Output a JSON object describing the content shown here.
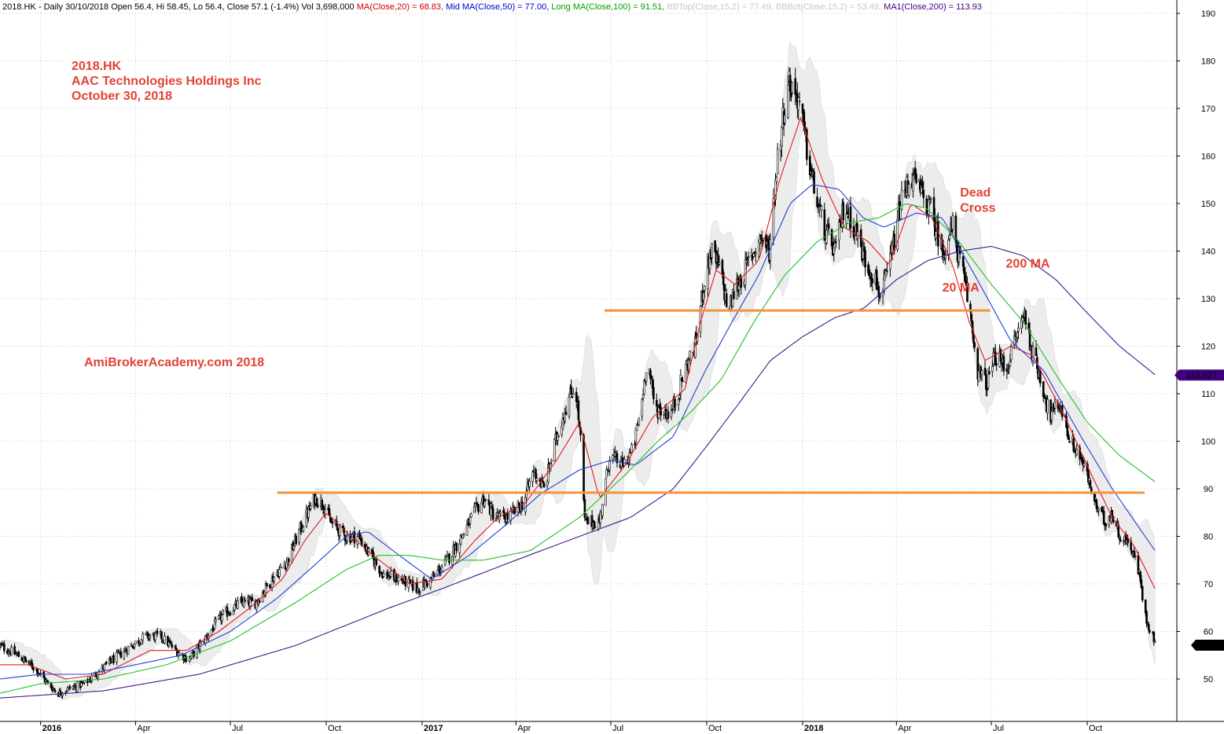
{
  "chart_data": {
    "type": "candlestick",
    "ticker": "2018.HK",
    "header": [
      {
        "text": "2018.HK - Daily 30/10/2018 Open 56.4, Hi 58.45, Lo 56.4, Close 57.1 (-1.4%) Vol 3,698,000 ",
        "color": "#000000"
      },
      {
        "text": "MA(Close,20) = 68.83, ",
        "color": "#d00000"
      },
      {
        "text": "Mid MA(Close,50) = 77.00, ",
        "color": "#0000d0"
      },
      {
        "text": "Long MA(Close,100) = 91.51, ",
        "color": "#00a000"
      },
      {
        "text": "BBTop(Close,15,2) = 77.49, ",
        "color": "#c8c8c8"
      },
      {
        "text": "BBBot(Close,15,2) = 53.49, ",
        "color": "#c8c8c8"
      },
      {
        "text": "MA1(Close,200) = 113.93",
        "color": "#400080"
      }
    ],
    "title_lines": [
      "2018.HK",
      "AAC Technologies Holdings Inc",
      "October 30, 2018"
    ],
    "watermark": "AmiBrokerAcademy.com  2018",
    "annotations": [
      {
        "text": "Dead",
        "date": "2018-06-01",
        "price": 151.5
      },
      {
        "text": "Cross",
        "date": "2018-06-01",
        "price": 148.3
      },
      {
        "text": "200 MA",
        "date": "2018-07-15",
        "price": 136.5
      },
      {
        "text": "20 MA",
        "date": "2018-05-15",
        "price": 131.5
      }
    ],
    "y_ticks": [
      50,
      60,
      70,
      80,
      90,
      100,
      110,
      120,
      130,
      140,
      150,
      160,
      170,
      180,
      190
    ],
    "ylim": [
      42,
      193
    ],
    "x_range": [
      "2015-11-23",
      "2018-12-26"
    ],
    "x_ticks": [
      {
        "label": "2016",
        "date": "2016-01-01",
        "year": true
      },
      {
        "label": "Apr",
        "date": "2016-04-01",
        "year": false
      },
      {
        "label": "Jul",
        "date": "2016-07-01",
        "year": false
      },
      {
        "label": "Oct",
        "date": "2016-10-01",
        "year": false
      },
      {
        "label": "2017",
        "date": "2017-01-01",
        "year": true
      },
      {
        "label": "Apr",
        "date": "2017-04-01",
        "year": false
      },
      {
        "label": "Jul",
        "date": "2017-07-01",
        "year": false
      },
      {
        "label": "Oct",
        "date": "2017-10-01",
        "year": false
      },
      {
        "label": "2018",
        "date": "2018-01-01",
        "year": true
      },
      {
        "label": "Apr",
        "date": "2018-04-01",
        "year": false
      },
      {
        "label": "Jul",
        "date": "2018-07-01",
        "year": false
      },
      {
        "label": "Oct",
        "date": "2018-10-01",
        "year": false
      }
    ],
    "horizontal_lines": [
      {
        "price": 127.5,
        "start": "2017-06-25",
        "end": "2018-06-30",
        "color": "#f5923e"
      },
      {
        "price": 89.2,
        "start": "2016-08-15",
        "end": "2018-11-25",
        "color": "#f5923e"
      }
    ],
    "price_labels": [
      {
        "text": "113.927",
        "price": 113.927,
        "bg": "#400080"
      },
      {
        "text": "57.1",
        "price": 57.1,
        "bg": "#000000"
      }
    ],
    "price_path": [
      [
        "2015-11-23",
        57
      ],
      [
        "2015-12-10",
        55
      ],
      [
        "2015-12-28",
        52
      ],
      [
        "2016-01-08",
        49
      ],
      [
        "2016-01-18",
        47
      ],
      [
        "2016-01-28",
        48
      ],
      [
        "2016-02-12",
        49
      ],
      [
        "2016-02-28",
        52
      ],
      [
        "2016-03-10",
        54
      ],
      [
        "2016-03-28",
        57
      ],
      [
        "2016-04-10",
        59
      ],
      [
        "2016-04-25",
        59
      ],
      [
        "2016-05-10",
        56
      ],
      [
        "2016-05-22",
        54
      ],
      [
        "2016-06-05",
        58
      ],
      [
        "2016-06-22",
        63
      ],
      [
        "2016-07-10",
        66
      ],
      [
        "2016-07-25",
        66
      ],
      [
        "2016-08-10",
        71
      ],
      [
        "2016-08-25",
        75
      ],
      [
        "2016-09-05",
        81
      ],
      [
        "2016-09-20",
        88
      ],
      [
        "2016-09-28",
        87
      ],
      [
        "2016-10-05",
        83
      ],
      [
        "2016-10-20",
        80
      ],
      [
        "2016-11-01",
        80
      ],
      [
        "2016-11-12",
        76
      ],
      [
        "2016-11-25",
        72
      ],
      [
        "2016-12-10",
        71
      ],
      [
        "2016-12-28",
        69
      ],
      [
        "2017-01-10",
        71
      ],
      [
        "2017-01-25",
        75
      ],
      [
        "2017-02-08",
        80
      ],
      [
        "2017-02-20",
        85
      ],
      [
        "2017-03-01",
        88
      ],
      [
        "2017-03-12",
        84
      ],
      [
        "2017-03-25",
        84
      ],
      [
        "2017-04-08",
        87
      ],
      [
        "2017-04-18",
        94
      ],
      [
        "2017-04-28",
        90
      ],
      [
        "2017-05-10",
        101
      ],
      [
        "2017-05-20",
        108
      ],
      [
        "2017-05-28",
        112
      ],
      [
        "2017-06-02",
        100
      ],
      [
        "2017-06-06",
        83
      ],
      [
        "2017-06-20",
        83
      ],
      [
        "2017-06-30",
        97
      ],
      [
        "2017-07-12",
        95
      ],
      [
        "2017-07-22",
        98
      ],
      [
        "2017-07-30",
        107
      ],
      [
        "2017-08-05",
        118
      ],
      [
        "2017-08-12",
        107
      ],
      [
        "2017-08-28",
        106
      ],
      [
        "2017-09-12",
        116
      ],
      [
        "2017-09-20",
        120
      ],
      [
        "2017-09-28",
        133
      ],
      [
        "2017-10-05",
        140
      ],
      [
        "2017-10-14",
        136
      ],
      [
        "2017-10-22",
        127
      ],
      [
        "2017-10-28",
        132
      ],
      [
        "2017-11-05",
        135
      ],
      [
        "2017-11-15",
        140
      ],
      [
        "2017-11-22",
        143
      ],
      [
        "2017-11-30",
        140
      ],
      [
        "2017-12-08",
        160
      ],
      [
        "2017-12-18",
        176
      ],
      [
        "2017-12-28",
        172
      ],
      [
        "2018-01-06",
        160
      ],
      [
        "2018-01-15",
        150
      ],
      [
        "2018-01-24",
        143
      ],
      [
        "2018-02-02",
        140
      ],
      [
        "2018-02-10",
        150
      ],
      [
        "2018-02-20",
        145
      ],
      [
        "2018-03-02",
        138
      ],
      [
        "2018-03-10",
        135
      ],
      [
        "2018-03-18",
        130
      ],
      [
        "2018-03-28",
        140
      ],
      [
        "2018-04-05",
        150
      ],
      [
        "2018-04-15",
        156
      ],
      [
        "2018-04-25",
        152
      ],
      [
        "2018-05-05",
        148
      ],
      [
        "2018-05-15",
        140
      ],
      [
        "2018-05-25",
        145
      ],
      [
        "2018-06-02",
        137
      ],
      [
        "2018-06-10",
        128
      ],
      [
        "2018-06-18",
        115
      ],
      [
        "2018-06-26",
        112
      ],
      [
        "2018-07-05",
        118
      ],
      [
        "2018-07-15",
        115
      ],
      [
        "2018-07-25",
        122
      ],
      [
        "2018-08-02",
        127
      ],
      [
        "2018-08-10",
        118
      ],
      [
        "2018-08-18",
        113
      ],
      [
        "2018-08-26",
        105
      ],
      [
        "2018-09-05",
        108
      ],
      [
        "2018-09-15",
        100
      ],
      [
        "2018-09-24",
        97
      ],
      [
        "2018-10-02",
        92
      ],
      [
        "2018-10-10",
        86
      ],
      [
        "2018-10-18",
        83
      ],
      [
        "2018-10-24",
        85
      ],
      [
        "2018-11-02",
        80
      ],
      [
        "2018-11-12",
        78
      ],
      [
        "2018-11-20",
        72
      ],
      [
        "2018-11-26",
        63
      ],
      [
        "2018-12-05",
        58
      ]
    ],
    "series": [
      {
        "name": "MA(Close,20)",
        "color": "#e31a1c",
        "points": [
          [
            "2015-11-23",
            53
          ],
          [
            "2015-12-20",
            53
          ],
          [
            "2016-01-25",
            50
          ],
          [
            "2016-03-01",
            51
          ],
          [
            "2016-04-15",
            56
          ],
          [
            "2016-05-20",
            56
          ],
          [
            "2016-06-20",
            60
          ],
          [
            "2016-07-20",
            65
          ],
          [
            "2016-08-20",
            71
          ],
          [
            "2016-09-10",
            79
          ],
          [
            "2016-10-01",
            85
          ],
          [
            "2016-10-20",
            81
          ],
          [
            "2016-11-15",
            76
          ],
          [
            "2016-12-20",
            70
          ],
          [
            "2017-01-20",
            71
          ],
          [
            "2017-02-20",
            79
          ],
          [
            "2017-03-15",
            84
          ],
          [
            "2017-04-10",
            87
          ],
          [
            "2017-05-10",
            96
          ],
          [
            "2017-06-01",
            104
          ],
          [
            "2017-06-20",
            88
          ],
          [
            "2017-07-15",
            95
          ],
          [
            "2017-08-10",
            105
          ],
          [
            "2017-09-10",
            111
          ],
          [
            "2017-09-25",
            125
          ],
          [
            "2017-10-10",
            136
          ],
          [
            "2017-10-28",
            133
          ],
          [
            "2017-11-20",
            138
          ],
          [
            "2017-12-10",
            155
          ],
          [
            "2017-12-30",
            168
          ],
          [
            "2018-01-20",
            155
          ],
          [
            "2018-02-10",
            145
          ],
          [
            "2018-03-05",
            142
          ],
          [
            "2018-03-25",
            137
          ],
          [
            "2018-04-15",
            150
          ],
          [
            "2018-05-05",
            147
          ],
          [
            "2018-05-25",
            137
          ],
          [
            "2018-06-10",
            125
          ],
          [
            "2018-06-25",
            117
          ],
          [
            "2018-07-20",
            120
          ],
          [
            "2018-08-10",
            118
          ],
          [
            "2018-09-10",
            105
          ],
          [
            "2018-10-05",
            93
          ],
          [
            "2018-10-25",
            84
          ],
          [
            "2018-11-15",
            78
          ],
          [
            "2018-12-05",
            69
          ]
        ]
      },
      {
        "name": "Mid MA(Close,50)",
        "color": "#1f3fd6",
        "points": [
          [
            "2015-11-23",
            50
          ],
          [
            "2016-01-01",
            51
          ],
          [
            "2016-02-15",
            51
          ],
          [
            "2016-04-01",
            53
          ],
          [
            "2016-05-15",
            55
          ],
          [
            "2016-07-01",
            60
          ],
          [
            "2016-08-15",
            67
          ],
          [
            "2016-09-20",
            74
          ],
          [
            "2016-10-20",
            80
          ],
          [
            "2016-11-10",
            81
          ],
          [
            "2016-12-10",
            76
          ],
          [
            "2017-01-10",
            71
          ],
          [
            "2017-02-15",
            76
          ],
          [
            "2017-03-20",
            82
          ],
          [
            "2017-04-25",
            89
          ],
          [
            "2017-06-01",
            94
          ],
          [
            "2017-07-01",
            96
          ],
          [
            "2017-07-25",
            95
          ],
          [
            "2017-08-30",
            101
          ],
          [
            "2017-09-30",
            115
          ],
          [
            "2017-10-25",
            125
          ],
          [
            "2017-11-20",
            135
          ],
          [
            "2017-12-20",
            150
          ],
          [
            "2018-01-10",
            154
          ],
          [
            "2018-02-05",
            153
          ],
          [
            "2018-02-28",
            147
          ],
          [
            "2018-03-20",
            145
          ],
          [
            "2018-04-20",
            148
          ],
          [
            "2018-05-15",
            147
          ],
          [
            "2018-06-15",
            135
          ],
          [
            "2018-07-20",
            121
          ],
          [
            "2018-08-20",
            115
          ],
          [
            "2018-09-25",
            101
          ],
          [
            "2018-10-25",
            90
          ],
          [
            "2018-12-05",
            77
          ]
        ]
      },
      {
        "name": "Long MA(Close,100)",
        "color": "#22c02a",
        "points": [
          [
            "2015-11-23",
            47
          ],
          [
            "2016-01-01",
            49
          ],
          [
            "2016-03-01",
            50
          ],
          [
            "2016-05-01",
            53
          ],
          [
            "2016-07-01",
            58
          ],
          [
            "2016-09-01",
            66
          ],
          [
            "2016-10-20",
            73
          ],
          [
            "2016-11-20",
            76
          ],
          [
            "2016-12-20",
            76
          ],
          [
            "2017-01-20",
            75
          ],
          [
            "2017-03-01",
            75
          ],
          [
            "2017-04-15",
            77
          ],
          [
            "2017-06-01",
            84
          ],
          [
            "2017-07-15",
            93
          ],
          [
            "2017-08-15",
            100
          ],
          [
            "2017-09-15",
            106
          ],
          [
            "2017-10-15",
            113
          ],
          [
            "2017-11-15",
            125
          ],
          [
            "2017-12-15",
            135
          ],
          [
            "2018-01-15",
            142
          ],
          [
            "2018-02-15",
            146
          ],
          [
            "2018-03-15",
            147
          ],
          [
            "2018-04-10",
            150
          ],
          [
            "2018-04-30",
            149
          ],
          [
            "2018-05-31",
            142
          ],
          [
            "2018-07-01",
            133
          ],
          [
            "2018-08-01",
            125
          ],
          [
            "2018-09-01",
            114
          ],
          [
            "2018-10-01",
            104
          ],
          [
            "2018-11-01",
            97
          ],
          [
            "2018-12-05",
            91.5
          ]
        ]
      },
      {
        "name": "MA1(Close,200)",
        "color": "#3a1d8a",
        "points": [
          [
            "2015-11-23",
            46
          ],
          [
            "2016-03-01",
            47.5
          ],
          [
            "2016-06-01",
            51
          ],
          [
            "2016-09-01",
            57
          ],
          [
            "2016-12-01",
            65
          ],
          [
            "2017-01-20",
            69
          ],
          [
            "2017-04-01",
            75
          ],
          [
            "2017-06-01",
            80
          ],
          [
            "2017-07-20",
            84
          ],
          [
            "2017-08-30",
            90
          ],
          [
            "2017-10-01",
            99
          ],
          [
            "2017-11-01",
            108
          ],
          [
            "2017-12-01",
            117
          ],
          [
            "2018-01-01",
            122
          ],
          [
            "2018-02-01",
            126
          ],
          [
            "2018-03-01",
            128
          ],
          [
            "2018-04-01",
            134
          ],
          [
            "2018-05-01",
            138
          ],
          [
            "2018-06-01",
            140
          ],
          [
            "2018-07-01",
            141
          ],
          [
            "2018-08-01",
            139
          ],
          [
            "2018-09-01",
            134
          ],
          [
            "2018-10-01",
            127
          ],
          [
            "2018-11-01",
            120
          ],
          [
            "2018-12-05",
            114
          ]
        ]
      }
    ]
  }
}
